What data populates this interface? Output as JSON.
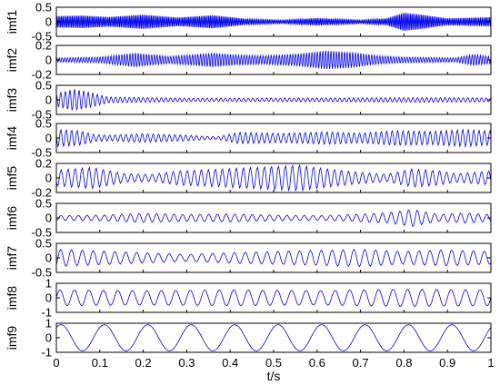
{
  "chart_data": {
    "type": "line",
    "xlabel": "t/s",
    "xlim": [
      0,
      1
    ],
    "xticks": [
      "0",
      "0.1",
      "0.2",
      "0.3",
      "0.4",
      "0.5",
      "0.6",
      "0.7",
      "0.8",
      "0.9",
      "1"
    ],
    "grid": false,
    "line_color": "#0000ee",
    "panels": [
      {
        "name": "imf1",
        "ylim": [
          -0.5,
          0.5
        ],
        "yticks": [
          "0.5",
          "0",
          "-0.5"
        ],
        "freq": 280,
        "envelope": [
          [
            0.0,
            0.2
          ],
          [
            0.06,
            0.22
          ],
          [
            0.12,
            0.17
          ],
          [
            0.2,
            0.25
          ],
          [
            0.28,
            0.15
          ],
          [
            0.36,
            0.23
          ],
          [
            0.44,
            0.1
          ],
          [
            0.52,
            0.06
          ],
          [
            0.6,
            0.13
          ],
          [
            0.7,
            0.06
          ],
          [
            0.76,
            0.12
          ],
          [
            0.8,
            0.32
          ],
          [
            0.84,
            0.25
          ],
          [
            0.9,
            0.12
          ],
          [
            1.0,
            0.16
          ]
        ]
      },
      {
        "name": "imf2",
        "ylim": [
          -0.2,
          0.2
        ],
        "yticks": [
          "0.2",
          "0",
          "-0.2"
        ],
        "freq": 160,
        "envelope": [
          [
            0.0,
            0.03
          ],
          [
            0.1,
            0.04
          ],
          [
            0.18,
            0.1
          ],
          [
            0.26,
            0.05
          ],
          [
            0.36,
            0.1
          ],
          [
            0.42,
            0.07
          ],
          [
            0.48,
            0.06
          ],
          [
            0.56,
            0.09
          ],
          [
            0.62,
            0.13
          ],
          [
            0.68,
            0.11
          ],
          [
            0.74,
            0.06
          ],
          [
            0.8,
            0.04
          ],
          [
            0.92,
            0.03
          ],
          [
            0.96,
            0.08
          ],
          [
            1.0,
            0.05
          ]
        ]
      },
      {
        "name": "imf3",
        "ylim": [
          -0.5,
          0.5
        ],
        "yticks": [
          "0.5",
          "0",
          "-0.5"
        ],
        "freq": 95,
        "envelope": [
          [
            0.0,
            0.22
          ],
          [
            0.04,
            0.38
          ],
          [
            0.08,
            0.25
          ],
          [
            0.12,
            0.1
          ],
          [
            0.3,
            0.06
          ],
          [
            0.5,
            0.06
          ],
          [
            0.7,
            0.07
          ],
          [
            0.85,
            0.08
          ],
          [
            1.0,
            0.07
          ]
        ]
      },
      {
        "name": "imf4",
        "ylim": [
          -0.5,
          0.5
        ],
        "yticks": [
          "0.5",
          "0",
          "-0.5"
        ],
        "freq": 80,
        "envelope": [
          [
            0.0,
            0.3
          ],
          [
            0.05,
            0.26
          ],
          [
            0.09,
            0.12
          ],
          [
            0.12,
            0.1
          ],
          [
            0.2,
            0.15
          ],
          [
            0.3,
            0.1
          ],
          [
            0.37,
            0.04
          ],
          [
            0.42,
            0.2
          ],
          [
            0.52,
            0.16
          ],
          [
            0.62,
            0.22
          ],
          [
            0.7,
            0.17
          ],
          [
            0.78,
            0.26
          ],
          [
            0.86,
            0.23
          ],
          [
            0.94,
            0.3
          ],
          [
            1.0,
            0.25
          ]
        ]
      },
      {
        "name": "imf5",
        "ylim": [
          -0.2,
          0.2
        ],
        "yticks": [
          "0.2",
          "0",
          "-0.2"
        ],
        "freq": 62,
        "envelope": [
          [
            0.0,
            0.11
          ],
          [
            0.08,
            0.15
          ],
          [
            0.16,
            0.06
          ],
          [
            0.22,
            0.05
          ],
          [
            0.28,
            0.1
          ],
          [
            0.36,
            0.12
          ],
          [
            0.46,
            0.15
          ],
          [
            0.56,
            0.18
          ],
          [
            0.62,
            0.13
          ],
          [
            0.7,
            0.08
          ],
          [
            0.76,
            0.05
          ],
          [
            0.82,
            0.13
          ],
          [
            0.88,
            0.1
          ],
          [
            0.92,
            0.06
          ],
          [
            1.0,
            0.1
          ]
        ]
      },
      {
        "name": "imf6",
        "ylim": [
          -0.5,
          0.5
        ],
        "yticks": [
          "0.5",
          "0",
          "-0.5"
        ],
        "freq": 50,
        "envelope": [
          [
            0.0,
            0.08
          ],
          [
            0.1,
            0.1
          ],
          [
            0.2,
            0.16
          ],
          [
            0.3,
            0.12
          ],
          [
            0.4,
            0.14
          ],
          [
            0.5,
            0.1
          ],
          [
            0.6,
            0.08
          ],
          [
            0.68,
            0.12
          ],
          [
            0.76,
            0.18
          ],
          [
            0.82,
            0.3
          ],
          [
            0.88,
            0.12
          ],
          [
            0.94,
            0.18
          ],
          [
            1.0,
            0.12
          ]
        ]
      },
      {
        "name": "imf7",
        "ylim": [
          -0.5,
          0.5
        ],
        "yticks": [
          "0.5",
          "0",
          "-0.5"
        ],
        "freq": 40,
        "envelope": [
          [
            0.0,
            0.3
          ],
          [
            0.1,
            0.24
          ],
          [
            0.2,
            0.18
          ],
          [
            0.3,
            0.12
          ],
          [
            0.4,
            0.18
          ],
          [
            0.5,
            0.22
          ],
          [
            0.6,
            0.26
          ],
          [
            0.7,
            0.3
          ],
          [
            0.8,
            0.22
          ],
          [
            0.9,
            0.28
          ],
          [
            1.0,
            0.22
          ]
        ]
      },
      {
        "name": "imf8",
        "ylim": [
          -1,
          1
        ],
        "yticks": [
          "1",
          "0",
          "-1"
        ],
        "freq": 30,
        "envelope": [
          [
            0.0,
            0.55
          ],
          [
            0.2,
            0.5
          ],
          [
            0.4,
            0.55
          ],
          [
            0.6,
            0.5
          ],
          [
            0.8,
            0.6
          ],
          [
            1.0,
            0.55
          ]
        ]
      },
      {
        "name": "imf9",
        "ylim": [
          -1,
          1
        ],
        "yticks": [
          "1",
          "0",
          "-1"
        ],
        "freq": 10,
        "envelope": [
          [
            0.0,
            0.9
          ],
          [
            1.0,
            0.9
          ]
        ]
      }
    ]
  }
}
